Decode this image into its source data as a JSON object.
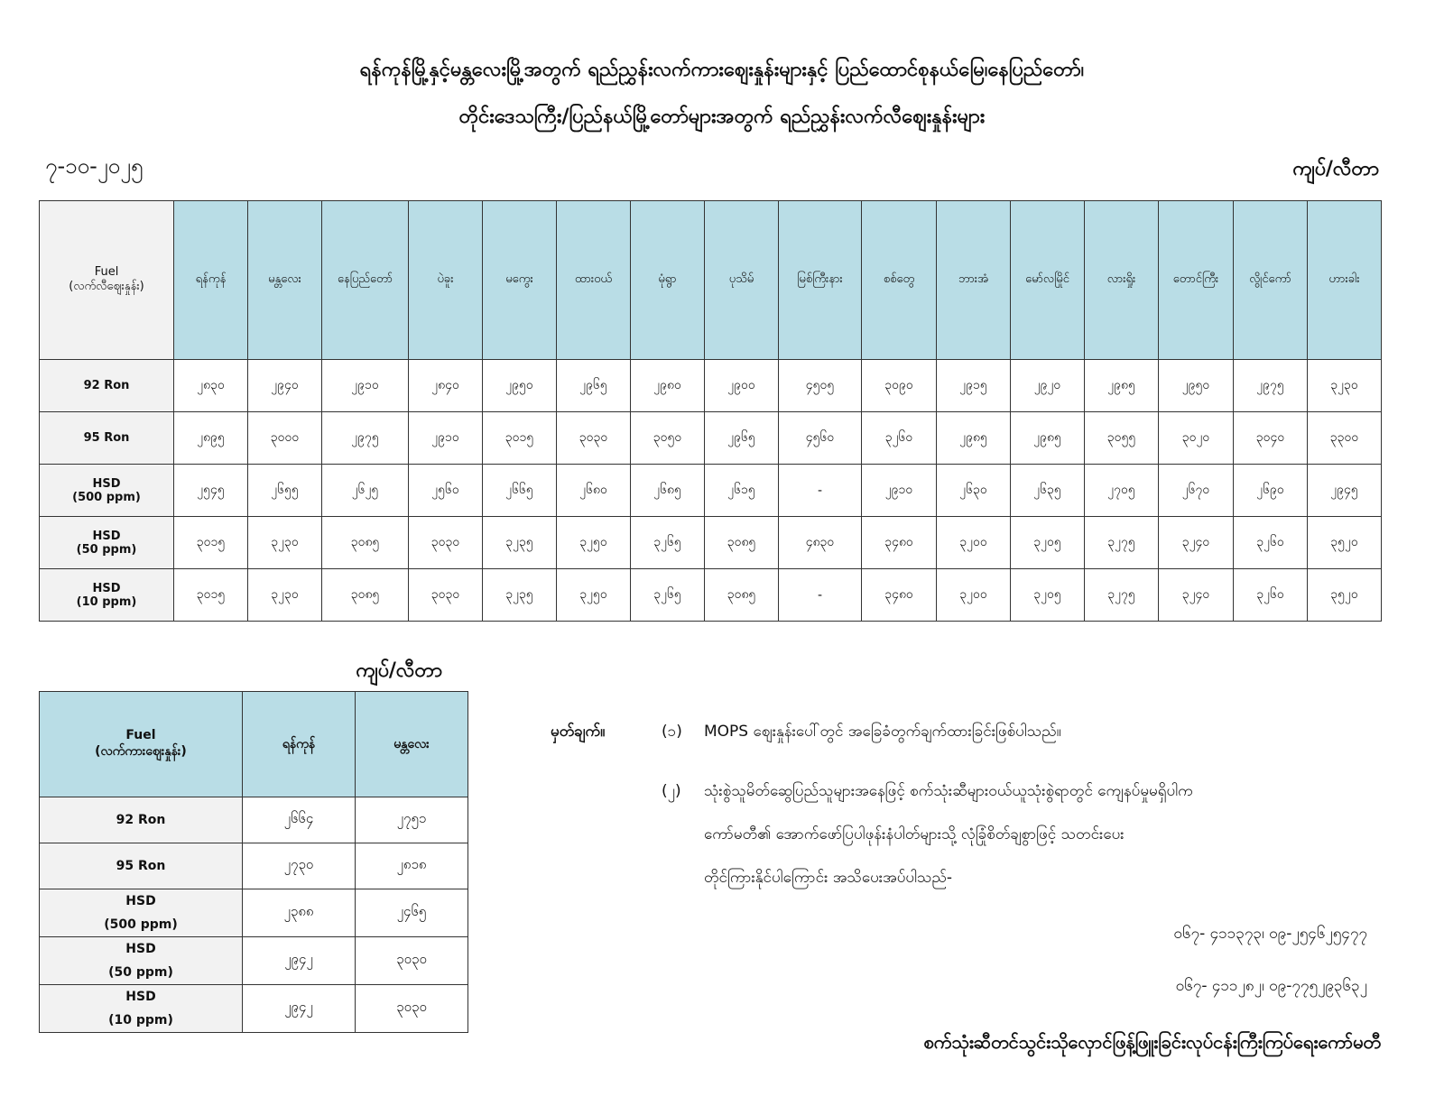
{
  "title_line1": "ရန်ကုန်မြို့နှင့်မန္တလေးမြို့အတွက် ရည်ညွှန်းလက်ကားဈေးနှုန်းများနှင့် ပြည်ထောင်စုနယ်မြေ၊နေပြည်တော်၊",
  "title_line2": "တိုင်းဒေသကြီး/ပြည်နယ်မြို့တော်များအတွက် ရည်ညွှန်းလက်လီဈေးနှုန်းများ",
  "date": "၇-၁၀-၂၀၂၅",
  "unit": "ကျပ်/လီတာ",
  "retail": {
    "fuel_header": "Fuel",
    "fuel_subheader": "(လက်လီဈေးနှုန်း)",
    "cities": [
      "ရန်ကုန်",
      "မန္တလေး",
      "နေပြည်တော်",
      "ပဲခူး",
      "မကွေး",
      "ထားဝယ်",
      "မုံရွာ",
      "ပုသိမ်",
      "မြစ်ကြီးနား",
      "စစ်တွေ",
      "ဘားအံ",
      "မော်လမြိုင်",
      "လားရှိုး",
      "တောင်ကြီး",
      "လွိုင်ကော်",
      "ဟားခါး"
    ],
    "rows": [
      {
        "fuel": "92 Ron",
        "sub": "",
        "values": [
          "၂၈၃၀",
          "၂၉၄၀",
          "၂၉၁၀",
          "၂၈၄၀",
          "၂၉၅၀",
          "၂၉၆၅",
          "၂၉၈၀",
          "၂၉၀၀",
          "၄၅၀၅",
          "၃၀၉၀",
          "၂၉၁၅",
          "၂၉၂၀",
          "၂၉၈၅",
          "၂၉၅၀",
          "၂၉၇၅",
          "၃၂၃၀"
        ]
      },
      {
        "fuel": "95 Ron",
        "sub": "",
        "values": [
          "၂၈၉၅",
          "၃၀၀၀",
          "၂၉၇၅",
          "၂၉၁၀",
          "၃၀၁၅",
          "၃၀၃၀",
          "၃၀၅၀",
          "၂၉၆၅",
          "၄၅၆၀",
          "၃၂၆၀",
          "၂၉၈၅",
          "၂၉၈၅",
          "၃၀၅၅",
          "၃၀၂၀",
          "၃၀၄၀",
          "၃၃၀၀"
        ]
      },
      {
        "fuel": "HSD",
        "sub": "(500 ppm)",
        "values": [
          "၂၅၄၅",
          "၂၆၅၅",
          "၂၆၂၅",
          "၂၅၆၀",
          "၂၆၆၅",
          "၂၆၈၀",
          "၂၆၈၅",
          "၂၆၁၅",
          "-",
          "၂၉၁၀",
          "၂၆၃၀",
          "၂၆၃၅",
          "၂၇၀၅",
          "၂၆၇၀",
          "၂၆၉၀",
          "၂၉၄၅"
        ]
      },
      {
        "fuel": "HSD",
        "sub": "(50 ppm)",
        "values": [
          "၃၀၁၅",
          "၃၂၃၀",
          "၃၀၈၅",
          "၃၀၃၀",
          "၃၂၃၅",
          "၃၂၅၀",
          "၃၂၆၅",
          "၃၀၈၅",
          "၄၈၃၀",
          "၃၄၈၀",
          "၃၂၀၀",
          "၃၂၀၅",
          "၃၂၇၅",
          "၃၂၄၀",
          "၃၂၆၀",
          "၃၅၂၀"
        ]
      },
      {
        "fuel": "HSD",
        "sub": "(10 ppm)",
        "values": [
          "၃၀၁၅",
          "၃၂၃၀",
          "၃၀၈၅",
          "၃၀၃၀",
          "၃၂၃၅",
          "၃၂၅၀",
          "၃၂၆၅",
          "၃၀၈၅",
          "-",
          "၃၄၈၀",
          "၃၂၀၀",
          "၃၂၀၅",
          "၃၂၇၅",
          "၃၂၄၀",
          "၃၂၆၀",
          "၃၅၂၀"
        ]
      }
    ]
  },
  "wholesale": {
    "unit": "ကျပ်/လီတာ",
    "fuel_header": "Fuel",
    "fuel_subheader": "(လက်ကားဈေးနှုန်း)",
    "cities": [
      "ရန်ကုန်",
      "မန္တလေး"
    ],
    "rows": [
      {
        "fuel": "92 Ron",
        "sub": "",
        "values": [
          "၂၆၆၄",
          "၂၇၅၁"
        ]
      },
      {
        "fuel": "95 Ron",
        "sub": "",
        "values": [
          "၂၇၃၀",
          "၂၈၁၈"
        ]
      },
      {
        "fuel": "HSD",
        "sub": "(500 ppm)",
        "values": [
          "၂၃၈၈",
          "၂၄၆၅"
        ]
      },
      {
        "fuel": "HSD",
        "sub": "(50 ppm)",
        "values": [
          "၂၉၄၂",
          "၃၀၃၀"
        ]
      },
      {
        "fuel": "HSD",
        "sub": "(10 ppm)",
        "values": [
          "၂၉၄၂",
          "၃၀၃၀"
        ]
      }
    ]
  },
  "notes": {
    "label": "မှတ်ချက်။",
    "item1_num": "(၁)",
    "item1": "MOPS ဈေးနှုန်းပေါ်တွင် အခြေခံတွက်ချက်ထားခြင်းဖြစ်ပါသည်။",
    "item2_num": "(၂)",
    "item2_line1": "သုံးစွဲသူမိတ်ဆွေပြည်သူများအနေဖြင့် စက်သုံးဆီများဝယ်ယူသုံးစွဲရာတွင် ကျေနပ်မှုမရှိပါက",
    "item2_line2": "ကော်မတီ၏ အောက်ဖော်ပြပါဖုန်းနံပါတ်များသို့ လုံခြုံစိတ်ချစွာဖြင့် သတင်းပေး",
    "item2_line3": "တိုင်ကြားနိုင်ပါကြောင်း အသိပေးအပ်ပါသည်-",
    "phone1": "၀၆၇- ၄၁၁၃၇၃၊ ၀၉-၂၅၄၆၂၅၄၇၇",
    "phone2": "၀၆၇- ၄၁၁၂၈၂၊ ၀၉-၇၇၅၂၉၃၆၃၂",
    "committee": "စက်သုံးဆီတင်သွင်းသိုလှောင်ဖြန့်ဖြူးခြင်းလုပ်ငန်းကြီးကြပ်ရေးကော်မတီ"
  }
}
